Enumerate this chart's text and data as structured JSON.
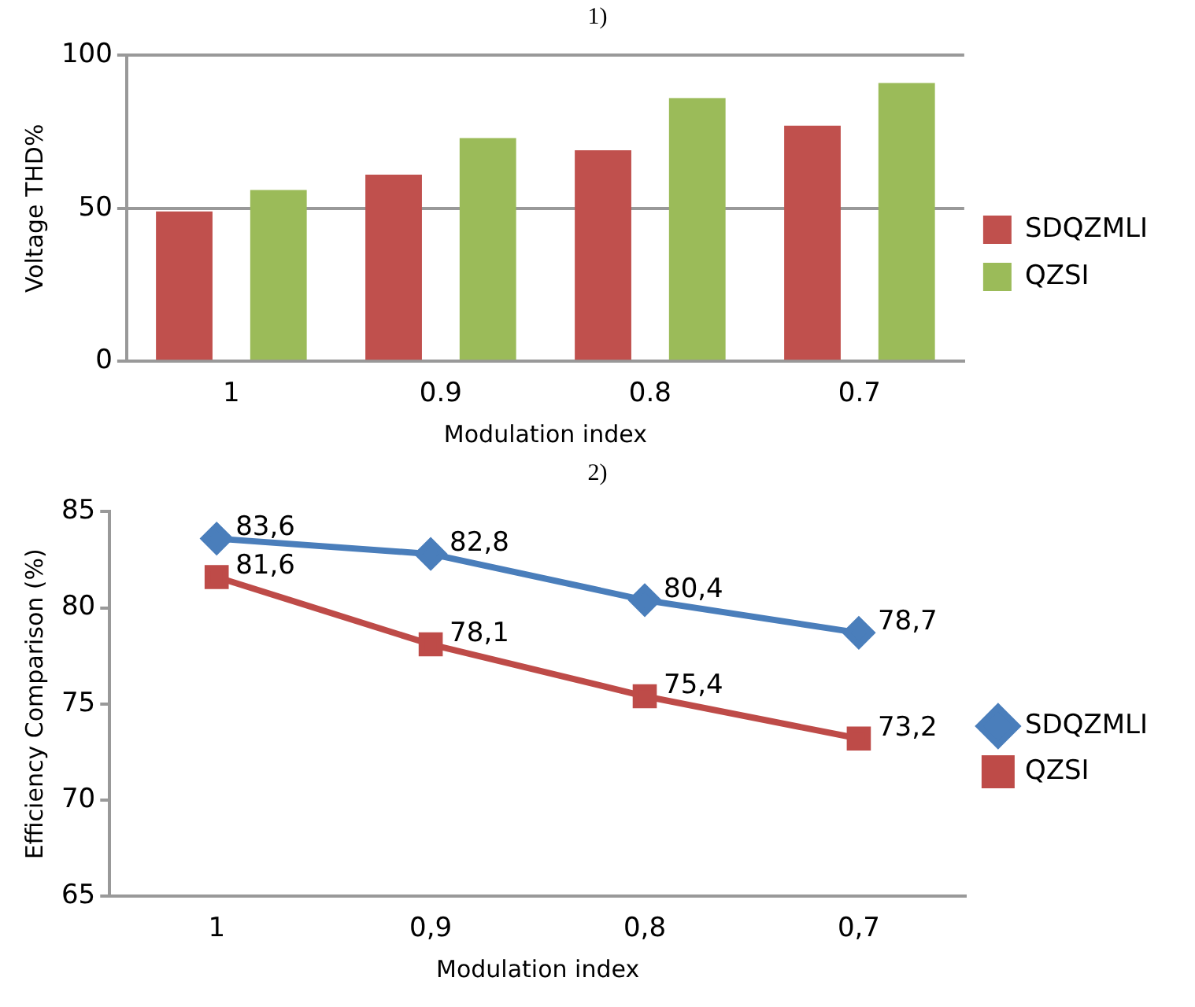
{
  "chart_data": [
    {
      "type": "bar",
      "title": "1)",
      "xlabel": "Modulation index",
      "ylabel": "Voltage THD%",
      "categories": [
        "1",
        "0.9",
        "0.8",
        "0.7"
      ],
      "series": [
        {
          "name": "SDQZMLI",
          "color": "#c0504d",
          "values": [
            49,
            61,
            69,
            77
          ]
        },
        {
          "name": "QZSI",
          "color": "#9bbb59",
          "values": [
            56,
            73,
            86,
            91
          ]
        }
      ],
      "ylim": [
        0,
        100
      ],
      "yticks": [
        0,
        50,
        100
      ],
      "grid": "y",
      "legend": "right"
    },
    {
      "type": "line",
      "title": "2)",
      "xlabel": "Modulation index",
      "ylabel": "Efficiency Comparison (%)",
      "categories": [
        "1",
        "0,9",
        "0,8",
        "0,7"
      ],
      "series": [
        {
          "name": "SDQZMLI",
          "color": "#4a7ebb",
          "marker": "diamond",
          "values": [
            83.6,
            82.8,
            80.4,
            78.7
          ],
          "value_labels": [
            "83,6",
            "82,8",
            "80,4",
            "78,7"
          ]
        },
        {
          "name": "QZSI",
          "color": "#be4b48",
          "marker": "square",
          "values": [
            81.6,
            78.1,
            75.4,
            73.2
          ],
          "value_labels": [
            "81,6",
            "78,1",
            "75,4",
            "73,2"
          ]
        }
      ],
      "ylim": [
        65,
        85
      ],
      "yticks": [
        65,
        70,
        75,
        80,
        85
      ],
      "grid": false,
      "legend": "right"
    }
  ]
}
